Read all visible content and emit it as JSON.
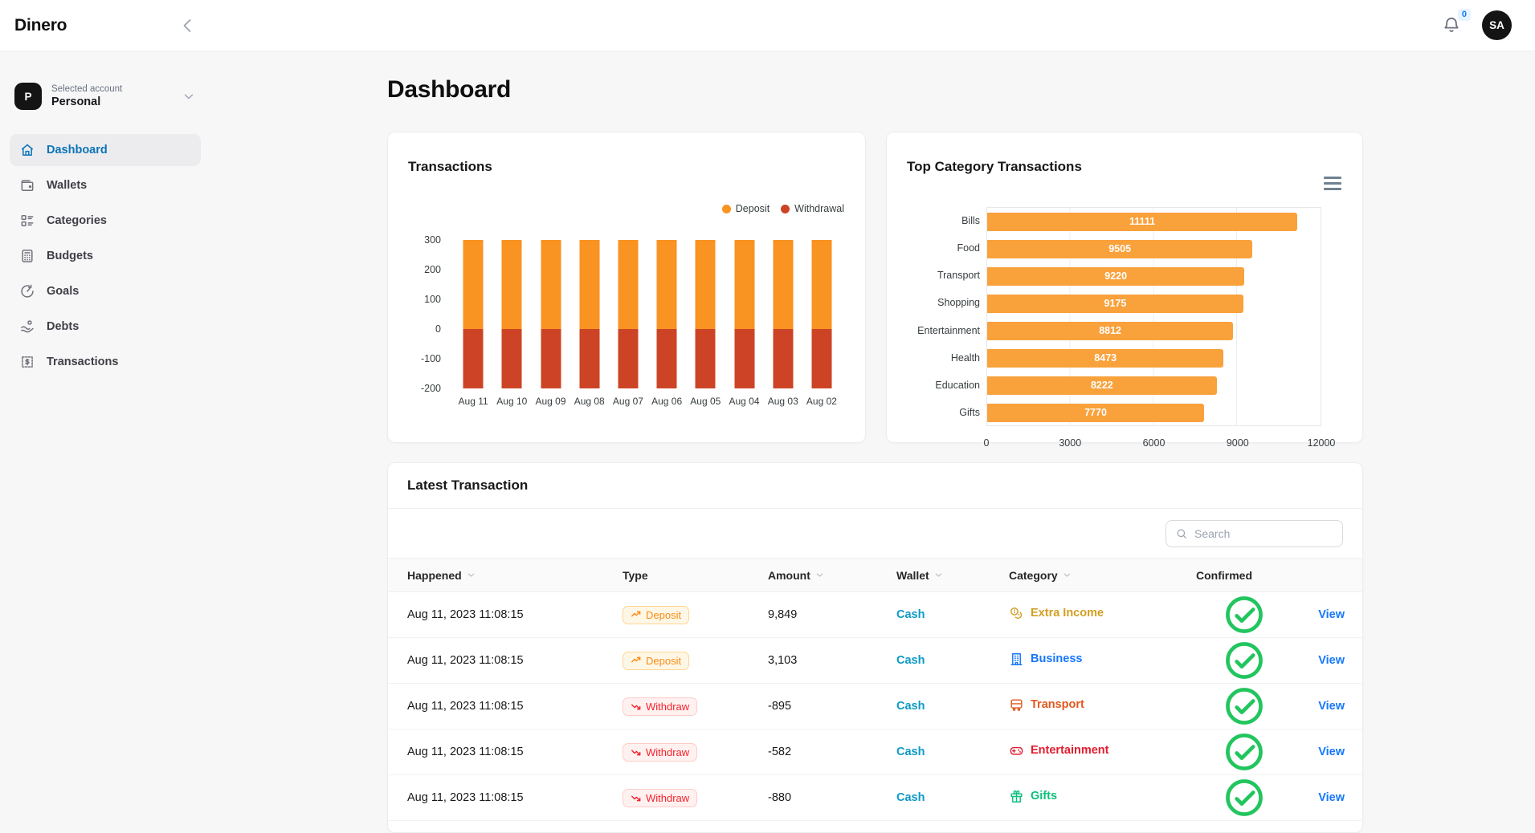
{
  "header": {
    "logo": "Dinero",
    "back_icon": "chevron-left-icon",
    "bell_icon": "bell-icon",
    "notifications_count": "0",
    "avatar_initials": "SA"
  },
  "sidebar": {
    "account_initial": "P",
    "selected_account_label": "Selected account",
    "selected_account_value": "Personal",
    "account_caret_icon": "chevron-down-icon",
    "items": [
      {
        "label": "Dashboard",
        "icon": "home-icon",
        "active": true
      },
      {
        "label": "Wallets",
        "icon": "wallet-icon",
        "active": false
      },
      {
        "label": "Categories",
        "icon": "categories-icon",
        "active": false
      },
      {
        "label": "Budgets",
        "icon": "calculator-icon",
        "active": false
      },
      {
        "label": "Goals",
        "icon": "goal-icon",
        "active": false
      },
      {
        "label": "Debts",
        "icon": "hand-coin-icon",
        "active": false
      },
      {
        "label": "Transactions",
        "icon": "receipt-icon",
        "active": false
      }
    ]
  },
  "main": {
    "page_title": "Dashboard"
  },
  "chart_data": [
    {
      "type": "bar",
      "orientation": "vertical",
      "stacked": true,
      "title": "Transactions",
      "categories": [
        "Aug 11",
        "Aug 10",
        "Aug 09",
        "Aug 08",
        "Aug 07",
        "Aug 06",
        "Aug 05",
        "Aug 04",
        "Aug 03",
        "Aug 02"
      ],
      "series": [
        {
          "name": "Deposit",
          "color": "#f99322",
          "values": [
            300,
            300,
            300,
            300,
            300,
            300,
            300,
            300,
            300,
            300
          ]
        },
        {
          "name": "Withdrawal",
          "color": "#cc4425",
          "values": [
            -200,
            -200,
            -200,
            -200,
            -200,
            -200,
            -200,
            -200,
            -200,
            -200
          ]
        }
      ],
      "yticks": [
        300,
        200,
        100,
        0,
        -100,
        -200
      ],
      "ylim": [
        -200,
        300
      ],
      "legend_position": "top-right",
      "grid": false
    },
    {
      "type": "bar",
      "orientation": "horizontal",
      "title": "Top Category Transactions",
      "menu_icon": "menu-icon",
      "categories": [
        "Bills",
        "Food",
        "Transport",
        "Shopping",
        "Entertainment",
        "Health",
        "Education",
        "Gifts"
      ],
      "values": [
        11111,
        9505,
        9220,
        9175,
        8812,
        8473,
        8222,
        7770
      ],
      "bar_color": "#f9a13b",
      "value_label_color": "#ffffff",
      "xticks": [
        0,
        3000,
        6000,
        9000,
        12000
      ],
      "xlim": [
        0,
        12000
      ],
      "grid": true
    }
  ],
  "transactions_table": {
    "title": "Latest Transaction",
    "search_placeholder": "Search",
    "search_icon": "search-icon",
    "columns": [
      {
        "label": "Happened",
        "sortable": true
      },
      {
        "label": "Type",
        "sortable": false
      },
      {
        "label": "Amount",
        "sortable": true
      },
      {
        "label": "Wallet",
        "sortable": true
      },
      {
        "label": "Category",
        "sortable": true
      },
      {
        "label": "Confirmed",
        "sortable": false
      },
      {
        "label": "",
        "sortable": false
      }
    ],
    "rows": [
      {
        "happened": "Aug 11, 2023 11:08:15",
        "type": "Deposit",
        "type_icon": "trend-up-icon",
        "amount": "9,849",
        "wallet": "Cash",
        "category": "Extra Income",
        "category_icon": "coins-icon",
        "category_color": "#d39e21",
        "confirmed": true,
        "action": "View"
      },
      {
        "happened": "Aug 11, 2023 11:08:15",
        "type": "Deposit",
        "type_icon": "trend-up-icon",
        "amount": "3,103",
        "wallet": "Cash",
        "category": "Business",
        "category_icon": "building-icon",
        "category_color": "#1677ff",
        "confirmed": true,
        "action": "View"
      },
      {
        "happened": "Aug 11, 2023 11:08:15",
        "type": "Withdraw",
        "type_icon": "trend-down-icon",
        "amount": "-895",
        "wallet": "Cash",
        "category": "Transport",
        "category_icon": "bus-icon",
        "category_color": "#e1581e",
        "confirmed": true,
        "action": "View"
      },
      {
        "happened": "Aug 11, 2023 11:08:15",
        "type": "Withdraw",
        "type_icon": "trend-down-icon",
        "amount": "-582",
        "wallet": "Cash",
        "category": "Entertainment",
        "category_icon": "gamepad-icon",
        "category_color": "#e11d2e",
        "confirmed": true,
        "action": "View"
      },
      {
        "happened": "Aug 11, 2023 11:08:15",
        "type": "Withdraw",
        "type_icon": "trend-down-icon",
        "amount": "-880",
        "wallet": "Cash",
        "category": "Gifts",
        "category_icon": "gift-icon",
        "category_color": "#0dbf7d",
        "confirmed": true,
        "action": "View"
      }
    ],
    "confirmed_icon": "check-circle-icon"
  },
  "colors": {
    "view_link": "#1677ff",
    "wallet_link": "#0e9ac6",
    "check_green": "#22c55e",
    "sidebar_active": "#0b74b8",
    "notification_badge_bg": "#e6f4ff",
    "notification_badge_text": "#1677ff",
    "deposit_badge_text": "#fa8c16",
    "deposit_badge_bg": "#fff7e6",
    "deposit_badge_border": "#ffd591",
    "withdraw_badge_text": "#f5222d",
    "withdraw_badge_bg": "#fff1f0",
    "withdraw_badge_border": "#ffccc7"
  }
}
